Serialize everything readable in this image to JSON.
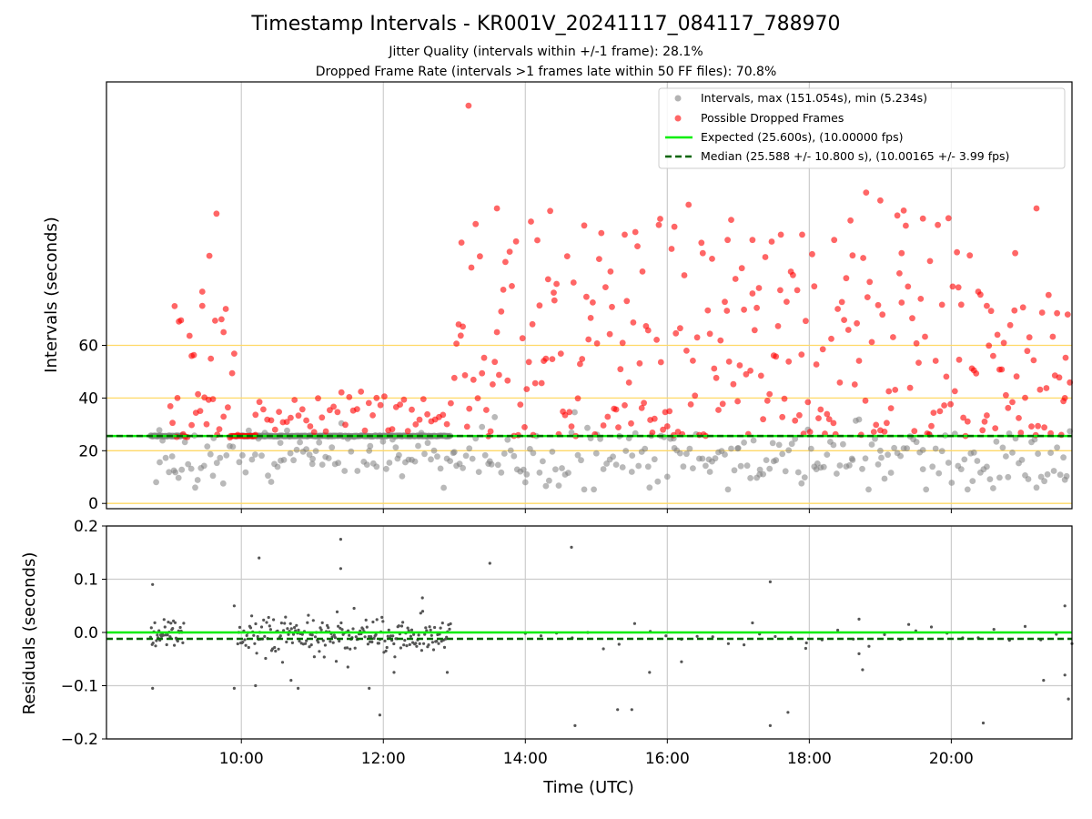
{
  "title": "Timestamp Intervals - KR001V_20241117_084117_788970",
  "subtitle_1": "Jitter Quality (intervals within +/-1 frame): 28.1%",
  "subtitle_2": "Dropped Frame Rate (intervals >1 frames late within 50 FF files): 70.8%",
  "colors": {
    "intervals": "#808080",
    "dropped": "#ff0000",
    "expected": "#00ee00",
    "median": "#006400",
    "reference_lines": "#ffd966",
    "grid": "#cccccc",
    "residuals": "#555555"
  },
  "chart_data": [
    {
      "type": "scatter",
      "name": "intervals",
      "ylabel": "Intervals (seconds)",
      "x_unit": "hours UTC",
      "xlim": [
        8.1,
        21.7
      ],
      "ylim": [
        -2,
        160
      ],
      "yticks": [
        0,
        20,
        40,
        60
      ],
      "ytick_labels": [
        "0",
        "20",
        "40",
        "60"
      ],
      "reference_lines": [
        0,
        20,
        40,
        60
      ],
      "grid": "vertical",
      "legend_position": "top-right",
      "legend": [
        "Intervals, max (151.054s), min (5.234s)",
        "Possible Dropped Frames",
        "Expected (25.600s), (10.00000 fps)",
        "Median (25.588 +/- 10.800 s), (10.00165 +/- 3.99 fps)"
      ],
      "expected": 25.6,
      "median": 25.588,
      "sample_points": {
        "intervals": [
          [
            8.85,
            15.6
          ],
          [
            9.05,
            12.5
          ],
          [
            9.35,
            6.0
          ],
          [
            9.6,
            10.5
          ],
          [
            10.55,
            23.0
          ],
          [
            11.0,
            15.0
          ],
          [
            11.8,
            20.0
          ],
          [
            12.2,
            17.0
          ],
          [
            13.0,
            19.5
          ],
          [
            13.5,
            16.0
          ],
          [
            14.0,
            8.0
          ],
          [
            15.0,
            19.0
          ],
          [
            15.5,
            12.0
          ],
          [
            15.75,
            6.0
          ],
          [
            16.1,
            21.0
          ],
          [
            16.6,
            12.0
          ],
          [
            17.0,
            21.0
          ],
          [
            17.3,
            11.0
          ],
          [
            17.5,
            16.0
          ],
          [
            18.1,
            13.0
          ],
          [
            18.6,
            17.0
          ],
          [
            19.0,
            20.0
          ],
          [
            19.6,
            13.0
          ],
          [
            20.3,
            8.5
          ],
          [
            20.8,
            10.0
          ],
          [
            21.2,
            6.0
          ],
          [
            21.6,
            9.0
          ]
        ],
        "dropped": [
          [
            9.1,
            40.0
          ],
          [
            9.3,
            56.0
          ],
          [
            9.45,
            75.0
          ],
          [
            9.55,
            94.0
          ],
          [
            9.65,
            110.0
          ],
          [
            9.75,
            65.0
          ],
          [
            9.95,
            26.0
          ],
          [
            10.2,
            26.0
          ],
          [
            13.2,
            151.0
          ],
          [
            13.1,
            99.0
          ],
          [
            13.6,
            112.0
          ],
          [
            14.1,
            68.0
          ],
          [
            14.4,
            80.0
          ],
          [
            15.2,
            88.0
          ],
          [
            15.4,
            102.0
          ],
          [
            15.65,
            88.0
          ],
          [
            15.9,
            108.0
          ],
          [
            16.1,
            105.0
          ],
          [
            16.5,
            95.0
          ],
          [
            16.85,
            100.0
          ],
          [
            17.2,
            100.0
          ],
          [
            17.6,
            102.0
          ],
          [
            17.9,
            102.0
          ],
          [
            18.35,
            100.0
          ],
          [
            18.8,
            118.0
          ],
          [
            19.0,
            115.0
          ],
          [
            19.3,
            95.0
          ],
          [
            19.7,
            92.0
          ],
          [
            20.1,
            82.0
          ],
          [
            20.5,
            75.0
          ],
          [
            20.9,
            95.0
          ],
          [
            21.2,
            112.0
          ],
          [
            21.6,
            40.0
          ]
        ]
      }
    },
    {
      "type": "scatter",
      "name": "residuals",
      "xlabel": "Time (UTC)",
      "ylabel": "Residuals (seconds)",
      "xlim": [
        8.1,
        21.7
      ],
      "xticks": [
        10,
        12,
        14,
        16,
        18,
        20
      ],
      "xtick_labels": [
        "10:00",
        "12:00",
        "14:00",
        "16:00",
        "18:00",
        "20:00"
      ],
      "ylim": [
        -0.2,
        0.2
      ],
      "yticks": [
        -0.2,
        -0.1,
        0.0,
        0.1,
        0.2
      ],
      "ytick_labels": [
        "−0.2",
        "−0.1",
        "0.0",
        "0.1",
        "0.2"
      ],
      "grid": true,
      "expected": 0.0,
      "median": -0.012,
      "sample_points": [
        [
          8.75,
          0.09
        ],
        [
          8.75,
          -0.105
        ],
        [
          9.0,
          -0.01
        ],
        [
          9.9,
          0.05
        ],
        [
          9.9,
          -0.105
        ],
        [
          10.25,
          0.14
        ],
        [
          10.2,
          -0.1
        ],
        [
          10.7,
          -0.09
        ],
        [
          10.8,
          -0.105
        ],
        [
          11.4,
          0.175
        ],
        [
          11.4,
          0.12
        ],
        [
          11.5,
          -0.065
        ],
        [
          11.8,
          -0.105
        ],
        [
          11.95,
          -0.155
        ],
        [
          12.15,
          -0.075
        ],
        [
          12.55,
          0.065
        ],
        [
          12.9,
          -0.075
        ],
        [
          13.5,
          0.13
        ],
        [
          14.65,
          0.16
        ],
        [
          14.7,
          -0.175
        ],
        [
          15.3,
          -0.145
        ],
        [
          15.5,
          -0.145
        ],
        [
          15.75,
          -0.075
        ],
        [
          16.2,
          -0.055
        ],
        [
          17.2,
          0.018
        ],
        [
          17.45,
          0.095
        ],
        [
          17.45,
          -0.175
        ],
        [
          17.7,
          -0.15
        ],
        [
          17.95,
          -0.03
        ],
        [
          18.7,
          0.025
        ],
        [
          18.7,
          -0.04
        ],
        [
          18.75,
          -0.07
        ],
        [
          19.4,
          0.015
        ],
        [
          20.45,
          -0.17
        ],
        [
          21.3,
          -0.09
        ],
        [
          21.6,
          0.05
        ],
        [
          21.6,
          -0.08
        ],
        [
          21.65,
          -0.125
        ]
      ]
    }
  ]
}
